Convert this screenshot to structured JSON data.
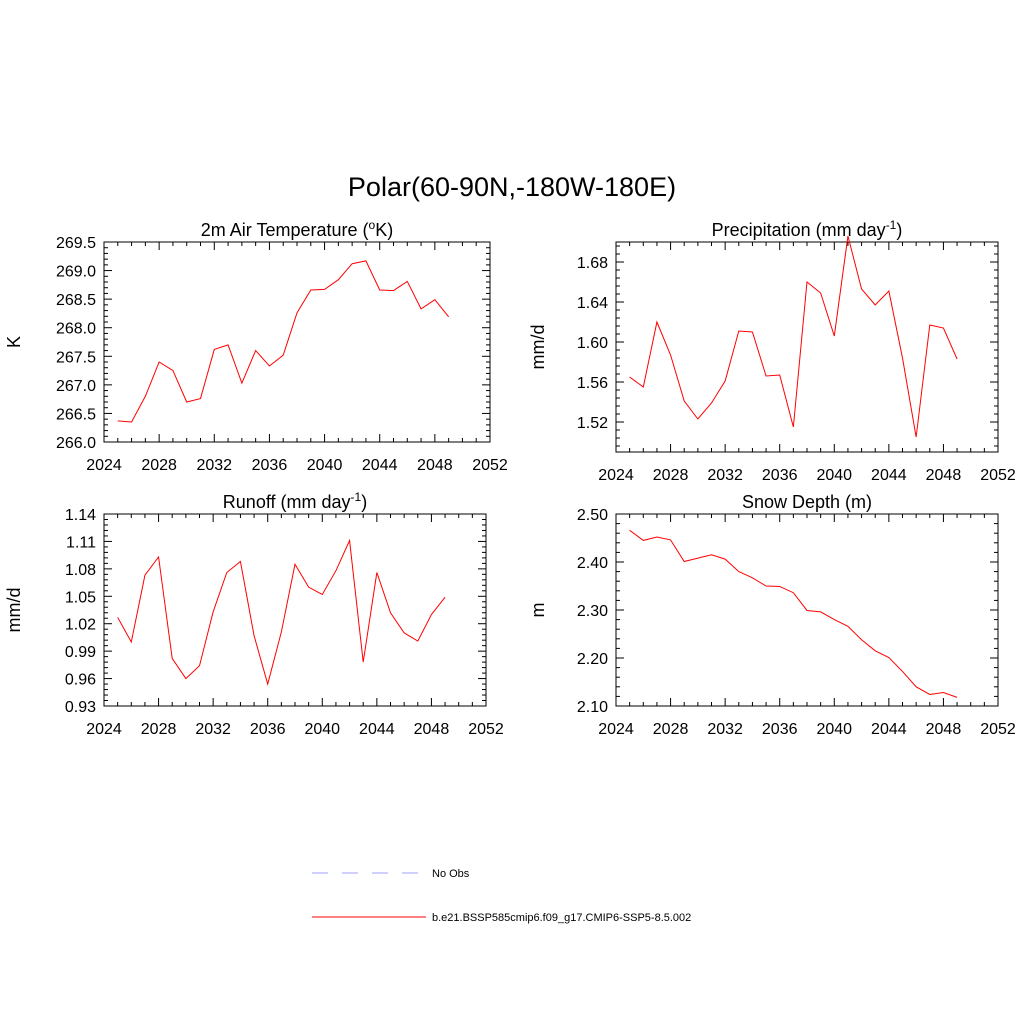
{
  "figure": {
    "title": "Polar(60-90N,-180W-180E)"
  },
  "chart_data": [
    {
      "type": "line",
      "title": "2m Air Temperature (",
      "title_sup": "o",
      "title_tail": "K)",
      "xlabel": "",
      "ylabel": "K",
      "xlim": [
        2024,
        2052
      ],
      "ylim": [
        266.0,
        269.5
      ],
      "xticks": [
        "2024",
        "2028",
        "2032",
        "2036",
        "2040",
        "2044",
        "2048",
        "2052"
      ],
      "yticks": [
        "266.0",
        "266.5",
        "267.0",
        "267.5",
        "268.0",
        "268.5",
        "269.0",
        "269.5"
      ],
      "series": [
        {
          "color": "#ff0000",
          "x": [
            2025,
            2026,
            2027,
            2028,
            2029,
            2030,
            2031,
            2032,
            2033,
            2034,
            2035,
            2036,
            2037,
            2038,
            2039,
            2040,
            2041,
            2042,
            2043,
            2044,
            2045,
            2046,
            2047,
            2048,
            2049
          ],
          "y": [
            266.37,
            266.35,
            266.8,
            267.4,
            267.25,
            266.7,
            266.76,
            267.62,
            267.7,
            267.03,
            267.6,
            267.33,
            267.52,
            268.26,
            268.66,
            268.67,
            268.84,
            269.12,
            269.17,
            268.66,
            268.65,
            268.81,
            268.33,
            268.49,
            268.19
          ]
        }
      ]
    },
    {
      "type": "line",
      "title": "Precipitation (mm day",
      "title_sup": "-1",
      "title_tail": ")",
      "xlabel": "",
      "ylabel": "mm/d",
      "xlim": [
        2024,
        2052
      ],
      "ylim": [
        1.49,
        1.7
      ],
      "xticks": [
        "2024",
        "2028",
        "2032",
        "2036",
        "2040",
        "2044",
        "2048",
        "2052"
      ],
      "yticks": [
        "1.52",
        "1.56",
        "1.60",
        "1.64",
        "1.68"
      ],
      "series": [
        {
          "color": "#ff0000",
          "x": [
            2025,
            2026,
            2027,
            2028,
            2029,
            2030,
            2031,
            2032,
            2033,
            2034,
            2035,
            2036,
            2037,
            2038,
            2039,
            2040,
            2041,
            2042,
            2043,
            2044,
            2045,
            2046,
            2047,
            2048,
            2049
          ],
          "y": [
            1.565,
            1.555,
            1.62,
            1.587,
            1.541,
            1.523,
            1.539,
            1.561,
            1.611,
            1.61,
            1.566,
            1.567,
            1.515,
            1.66,
            1.649,
            1.606,
            1.706,
            1.653,
            1.637,
            1.651,
            1.584,
            1.505,
            1.617,
            1.614,
            1.583
          ]
        }
      ]
    },
    {
      "type": "line",
      "title": "Runoff (mm day",
      "title_sup": "-1",
      "title_tail": ")",
      "xlabel": "",
      "ylabel": "mm/d",
      "xlim": [
        2024,
        2052
      ],
      "ylim": [
        0.93,
        1.14
      ],
      "xticks": [
        "2024",
        "2028",
        "2032",
        "2036",
        "2040",
        "2044",
        "2048",
        "2052"
      ],
      "yticks": [
        "0.93",
        "0.96",
        "0.99",
        "1.02",
        "1.05",
        "1.08",
        "1.11",
        "1.14"
      ],
      "series": [
        {
          "color": "#ff0000",
          "x": [
            2025,
            2026,
            2027,
            2028,
            2029,
            2030,
            2031,
            2032,
            2033,
            2034,
            2035,
            2036,
            2037,
            2038,
            2039,
            2040,
            2041,
            2042,
            2043,
            2044,
            2045,
            2046,
            2047,
            2048,
            2049
          ],
          "y": [
            1.027,
            1.0,
            1.073,
            1.093,
            0.982,
            0.96,
            0.974,
            1.033,
            1.076,
            1.088,
            1.007,
            0.954,
            1.011,
            1.085,
            1.06,
            1.052,
            1.078,
            1.111,
            0.978,
            1.076,
            1.032,
            1.01,
            1.001,
            1.03,
            1.049
          ]
        }
      ]
    },
    {
      "type": "line",
      "title": "Snow Depth (m)",
      "title_sup": "",
      "title_tail": "",
      "xlabel": "",
      "ylabel": "m",
      "xlim": [
        2024,
        2052
      ],
      "ylim": [
        2.1,
        2.5
      ],
      "xticks": [
        "2024",
        "2028",
        "2032",
        "2036",
        "2040",
        "2044",
        "2048",
        "2052"
      ],
      "yticks": [
        "2.10",
        "2.20",
        "2.30",
        "2.40",
        "2.50"
      ],
      "series": [
        {
          "color": "#ff0000",
          "x": [
            2025,
            2026,
            2027,
            2028,
            2029,
            2030,
            2031,
            2032,
            2033,
            2034,
            2035,
            2036,
            2037,
            2038,
            2039,
            2040,
            2041,
            2042,
            2043,
            2044,
            2045,
            2046,
            2047,
            2048,
            2049
          ],
          "y": [
            2.466,
            2.445,
            2.452,
            2.446,
            2.401,
            2.408,
            2.415,
            2.406,
            2.38,
            2.367,
            2.35,
            2.349,
            2.336,
            2.299,
            2.296,
            2.28,
            2.266,
            2.238,
            2.215,
            2.201,
            2.172,
            2.14,
            2.124,
            2.128,
            2.118
          ]
        }
      ]
    }
  ],
  "legend": {
    "placement": "bottom-center",
    "items": [
      {
        "label": "No Obs",
        "color": "#a0a0ff",
        "style": "dashed"
      },
      {
        "label": "b.e21.BSSP585cmip6.f09_g17.CMIP6-SSP5-8.5.002",
        "color": "#ff0000",
        "style": "solid"
      }
    ]
  }
}
